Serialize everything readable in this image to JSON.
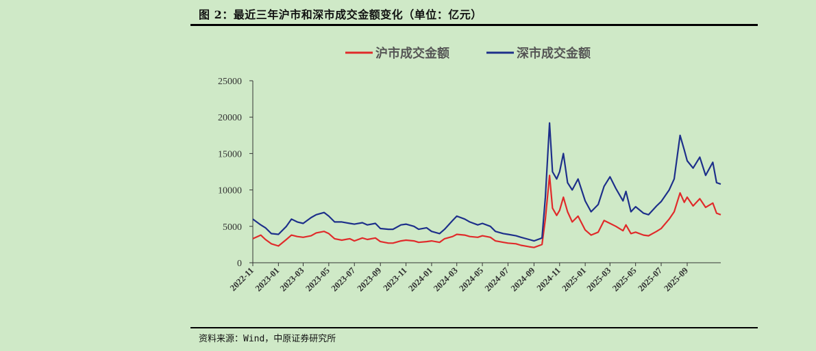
{
  "figure": {
    "title": "图 2：最近三年沪市和深市成交金额变化（单位：亿元）",
    "source": "资料来源：Wind，中原证券研究所"
  },
  "chart_data": {
    "type": "line",
    "title": "",
    "xlabel": "",
    "ylabel": "",
    "ylim": [
      0,
      25000
    ],
    "yticks": [
      0,
      5000,
      10000,
      15000,
      20000,
      25000
    ],
    "x_ticks": [
      "2022-11",
      "2023-01",
      "2023-03",
      "2023-05",
      "2023-07",
      "2023-09",
      "2023-11",
      "2024-01",
      "2024-03",
      "2024-05",
      "2024-07",
      "2024-09",
      "2024-11",
      "2025-01",
      "2025-03",
      "2025-05",
      "2025-07",
      "2025-09"
    ],
    "legend_position": "top",
    "series": [
      {
        "name": "沪市成交金额",
        "color": "#e02a2a",
        "points": [
          [
            "2022-11",
            3300
          ],
          [
            "2022-11-20",
            3800
          ],
          [
            "2022-12",
            3200
          ],
          [
            "2022-12-15",
            2600
          ],
          [
            "2023-01",
            2300
          ],
          [
            "2023-01-20",
            3200
          ],
          [
            "2023-02",
            3800
          ],
          [
            "2023-02-15",
            3600
          ],
          [
            "2023-03",
            3500
          ],
          [
            "2023-03-20",
            3700
          ],
          [
            "2023-04",
            4100
          ],
          [
            "2023-04-20",
            4300
          ],
          [
            "2023-05",
            4000
          ],
          [
            "2023-05-15",
            3300
          ],
          [
            "2023-06",
            3100
          ],
          [
            "2023-06-20",
            3300
          ],
          [
            "2023-07",
            3000
          ],
          [
            "2023-07-20",
            3400
          ],
          [
            "2023-08",
            3200
          ],
          [
            "2023-08-20",
            3400
          ],
          [
            "2023-09",
            2900
          ],
          [
            "2023-09-20",
            2700
          ],
          [
            "2023-10",
            2700
          ],
          [
            "2023-10-20",
            3000
          ],
          [
            "2023-11",
            3100
          ],
          [
            "2023-11-20",
            3000
          ],
          [
            "2023-12",
            2800
          ],
          [
            "2023-12-20",
            2900
          ],
          [
            "2024-01",
            3000
          ],
          [
            "2024-01-20",
            2800
          ],
          [
            "2024-02",
            3300
          ],
          [
            "2024-02-20",
            3600
          ],
          [
            "2024-03",
            3900
          ],
          [
            "2024-03-20",
            3800
          ],
          [
            "2024-04",
            3600
          ],
          [
            "2024-04-20",
            3500
          ],
          [
            "2024-05",
            3700
          ],
          [
            "2024-05-20",
            3500
          ],
          [
            "2024-06",
            3000
          ],
          [
            "2024-06-20",
            2800
          ],
          [
            "2024-07",
            2700
          ],
          [
            "2024-07-20",
            2600
          ],
          [
            "2024-08",
            2400
          ],
          [
            "2024-08-20",
            2200
          ],
          [
            "2024-09",
            2100
          ],
          [
            "2024-09-20",
            2500
          ],
          [
            "2024-09-28",
            6000
          ],
          [
            "2024-10-08",
            12000
          ],
          [
            "2024-10-15",
            7500
          ],
          [
            "2024-10-25",
            6500
          ],
          [
            "2024-11",
            7200
          ],
          [
            "2024-11-10",
            9000
          ],
          [
            "2024-11-20",
            7000
          ],
          [
            "2024-12",
            5600
          ],
          [
            "2024-12-15",
            6400
          ],
          [
            "2025-01",
            4500
          ],
          [
            "2025-01-15",
            3800
          ],
          [
            "2025-02",
            4200
          ],
          [
            "2025-02-15",
            5800
          ],
          [
            "2025-03",
            5400
          ],
          [
            "2025-03-15",
            5000
          ],
          [
            "2025-04",
            4400
          ],
          [
            "2025-04-08",
            5200
          ],
          [
            "2025-04-20",
            4000
          ],
          [
            "2025-05",
            4200
          ],
          [
            "2025-05-20",
            3800
          ],
          [
            "2025-06",
            3700
          ],
          [
            "2025-06-20",
            4300
          ],
          [
            "2025-07",
            4700
          ],
          [
            "2025-07-20",
            6000
          ],
          [
            "2025-08",
            7000
          ],
          [
            "2025-08-15",
            9600
          ],
          [
            "2025-08-25",
            8300
          ],
          [
            "2025-09",
            9000
          ],
          [
            "2025-09-15",
            7800
          ],
          [
            "2025-10",
            8800
          ],
          [
            "2025-10-15",
            7600
          ],
          [
            "2025-11",
            8200
          ],
          [
            "2025-11-10",
            6800
          ],
          [
            "2025-11-20",
            6600
          ]
        ]
      },
      {
        "name": "深市成交金额",
        "color": "#1d2f8a",
        "points": [
          [
            "2022-11",
            6000
          ],
          [
            "2022-11-20",
            5200
          ],
          [
            "2022-12",
            4800
          ],
          [
            "2022-12-15",
            4000
          ],
          [
            "2023-01",
            3900
          ],
          [
            "2023-01-20",
            5000
          ],
          [
            "2023-02",
            6000
          ],
          [
            "2023-02-15",
            5600
          ],
          [
            "2023-03",
            5400
          ],
          [
            "2023-03-20",
            6200
          ],
          [
            "2023-04",
            6600
          ],
          [
            "2023-04-20",
            6900
          ],
          [
            "2023-05",
            6400
          ],
          [
            "2023-05-15",
            5600
          ],
          [
            "2023-06",
            5600
          ],
          [
            "2023-06-20",
            5400
          ],
          [
            "2023-07",
            5300
          ],
          [
            "2023-07-20",
            5500
          ],
          [
            "2023-08",
            5200
          ],
          [
            "2023-08-20",
            5400
          ],
          [
            "2023-09",
            4700
          ],
          [
            "2023-09-20",
            4600
          ],
          [
            "2023-10",
            4600
          ],
          [
            "2023-10-20",
            5200
          ],
          [
            "2023-11",
            5300
          ],
          [
            "2023-11-20",
            5000
          ],
          [
            "2023-12",
            4600
          ],
          [
            "2023-12-20",
            4800
          ],
          [
            "2024-01",
            4300
          ],
          [
            "2024-01-20",
            4000
          ],
          [
            "2024-02",
            4600
          ],
          [
            "2024-02-20",
            5800
          ],
          [
            "2024-03",
            6400
          ],
          [
            "2024-03-20",
            6000
          ],
          [
            "2024-04",
            5600
          ],
          [
            "2024-04-20",
            5200
          ],
          [
            "2024-05",
            5400
          ],
          [
            "2024-05-20",
            5000
          ],
          [
            "2024-06",
            4300
          ],
          [
            "2024-06-20",
            4000
          ],
          [
            "2024-07",
            3900
          ],
          [
            "2024-07-20",
            3700
          ],
          [
            "2024-08",
            3500
          ],
          [
            "2024-08-20",
            3200
          ],
          [
            "2024-09",
            3000
          ],
          [
            "2024-09-20",
            3400
          ],
          [
            "2024-09-28",
            9000
          ],
          [
            "2024-10-08",
            19200
          ],
          [
            "2024-10-15",
            12500
          ],
          [
            "2024-10-25",
            11500
          ],
          [
            "2024-11",
            12500
          ],
          [
            "2024-11-10",
            15000
          ],
          [
            "2024-11-20",
            11000
          ],
          [
            "2024-12",
            10000
          ],
          [
            "2024-12-15",
            11500
          ],
          [
            "2025-01",
            8500
          ],
          [
            "2025-01-15",
            7000
          ],
          [
            "2025-02",
            8000
          ],
          [
            "2025-02-15",
            10500
          ],
          [
            "2025-03",
            11800
          ],
          [
            "2025-03-15",
            10200
          ],
          [
            "2025-04",
            8500
          ],
          [
            "2025-04-08",
            9800
          ],
          [
            "2025-04-20",
            7000
          ],
          [
            "2025-05",
            7700
          ],
          [
            "2025-05-20",
            6800
          ],
          [
            "2025-06",
            6600
          ],
          [
            "2025-06-20",
            7800
          ],
          [
            "2025-07",
            8400
          ],
          [
            "2025-07-20",
            10000
          ],
          [
            "2025-08",
            11500
          ],
          [
            "2025-08-15",
            17500
          ],
          [
            "2025-08-25",
            15500
          ],
          [
            "2025-09",
            14000
          ],
          [
            "2025-09-15",
            13000
          ],
          [
            "2025-10",
            14500
          ],
          [
            "2025-10-15",
            12000
          ],
          [
            "2025-11",
            13800
          ],
          [
            "2025-11-10",
            11000
          ],
          [
            "2025-11-20",
            10800
          ]
        ]
      }
    ]
  }
}
